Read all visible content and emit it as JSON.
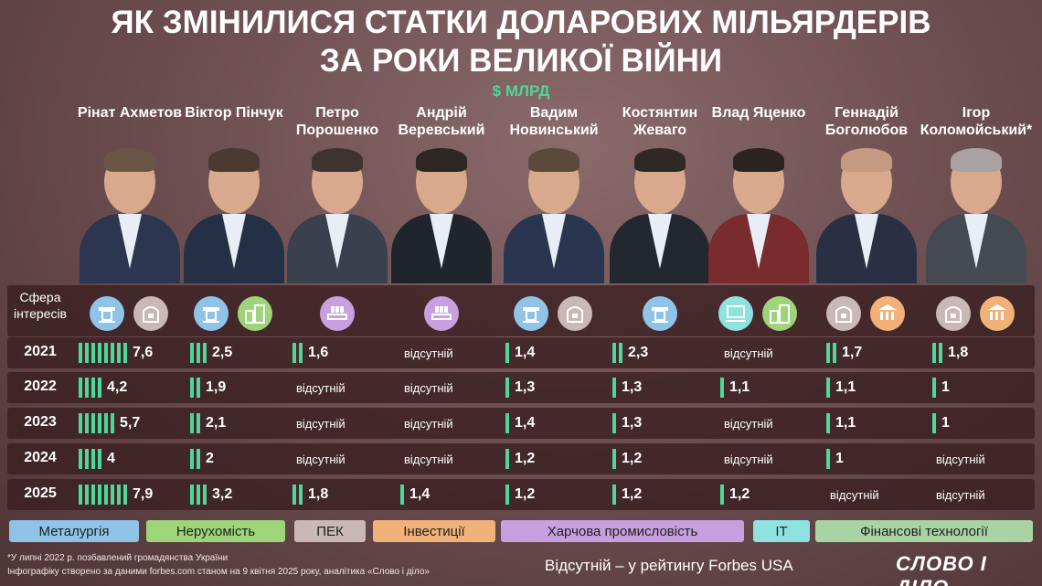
{
  "title_line1": "ЯК ЗМІНИЛИСЯ СТАТКИ ДОЛАРОВИХ МІЛЬЯРДЕРІВ",
  "title_line2": "ЗА РОКИ ВЕЛИКОЇ ВІЙНИ",
  "unit": "$ МЛРД",
  "sphere_label": "Сфера інтересів",
  "absent_text": "відсутній",
  "people": [
    {
      "name": "Рінат Ахметов",
      "interests": [
        "metallurgy-icon",
        "fintech-icon"
      ]
    },
    {
      "name": "Віктор Пінчук",
      "interests": [
        "metallurgy-icon",
        "real-estate-icon"
      ]
    },
    {
      "name": "Петро Порошенко",
      "interests": [
        "food-industry-icon"
      ]
    },
    {
      "name": "Андрій Веревський",
      "interests": [
        "food-industry-icon"
      ]
    },
    {
      "name": "Вадим Новинський",
      "interests": [
        "metallurgy-icon",
        "fintech-icon"
      ]
    },
    {
      "name": "Костянтин Жеваго",
      "interests": [
        "metallurgy-icon"
      ]
    },
    {
      "name": "Влад Яценко",
      "interests": [
        "it-icon",
        "real-estate-icon"
      ]
    },
    {
      "name": "Геннадій Боголюбов",
      "interests": [
        "fintech-icon",
        "investment-icon"
      ]
    },
    {
      "name": "Ігор Коломойський*",
      "interests": [
        "fintech-icon",
        "investment-icon"
      ]
    }
  ],
  "chart_data": {
    "type": "table",
    "unit": "$ МЛРД",
    "years": [
      "2021",
      "2022",
      "2023",
      "2024",
      "2025"
    ],
    "series": [
      {
        "name": "Рінат Ахметов",
        "values": [
          7.6,
          4.2,
          5.7,
          4,
          7.9
        ],
        "labels": [
          "7,6",
          "4,2",
          "5,7",
          "4",
          "7,9"
        ]
      },
      {
        "name": "Віктор Пінчук",
        "values": [
          2.5,
          1.9,
          2.1,
          2,
          3.2
        ],
        "labels": [
          "2,5",
          "1,9",
          "2,1",
          "2",
          "3,2"
        ]
      },
      {
        "name": "Петро Порошенко",
        "values": [
          1.6,
          null,
          null,
          null,
          1.8
        ],
        "labels": [
          "1,6",
          null,
          null,
          null,
          "1,8"
        ]
      },
      {
        "name": "Андрій Веревський",
        "values": [
          null,
          null,
          null,
          null,
          1.4
        ],
        "labels": [
          null,
          null,
          null,
          null,
          "1,4"
        ]
      },
      {
        "name": "Вадим Новинський",
        "values": [
          1.4,
          1.3,
          1.4,
          1.2,
          1.2
        ],
        "labels": [
          "1,4",
          "1,3",
          "1,4",
          "1,2",
          "1,2"
        ]
      },
      {
        "name": "Костянтин Жеваго",
        "values": [
          2.3,
          1.3,
          1.3,
          1.2,
          1.2
        ],
        "labels": [
          "2,3",
          "1,3",
          "1,3",
          "1,2",
          "1,2"
        ]
      },
      {
        "name": "Влад Яценко",
        "values": [
          null,
          1.1,
          null,
          null,
          1.2
        ],
        "labels": [
          null,
          "1,1",
          null,
          null,
          "1,2"
        ]
      },
      {
        "name": "Геннадій Боголюбов",
        "values": [
          1.7,
          1.1,
          1.1,
          1,
          null
        ],
        "labels": [
          "1,7",
          "1,1",
          "1,1",
          "1",
          null
        ]
      },
      {
        "name": "Ігор Коломойський*",
        "values": [
          1.8,
          1,
          1,
          null,
          null
        ],
        "labels": [
          "1,8",
          "1",
          "1",
          null,
          null
        ]
      }
    ]
  },
  "legend": [
    {
      "label": "Металургія",
      "color": "#8fc3e8"
    },
    {
      "label": "Нерухомість",
      "color": "#9ed47a"
    },
    {
      "label": "ПЕК",
      "color": "#c9b8b3"
    },
    {
      "label": "Інвестиції",
      "color": "#f1b27a"
    },
    {
      "label": "Харчова промисловість",
      "color": "#c8a0e0"
    },
    {
      "label": "IT",
      "color": "#8ee2e0"
    },
    {
      "label": "Фінансові технології",
      "color": "#a8d4a4"
    }
  ],
  "footnote1": "*У липні 2022 р. позбавлений громадянства України",
  "footnote2": "Інфографіку створено за даними forbes.com станом на 9 квітня 2025 року, аналітика «Слово і діло»",
  "absent_note": "Відсутній – у рейтингу Forbes USA",
  "logo": "СЛОВО І ДІЛО"
}
